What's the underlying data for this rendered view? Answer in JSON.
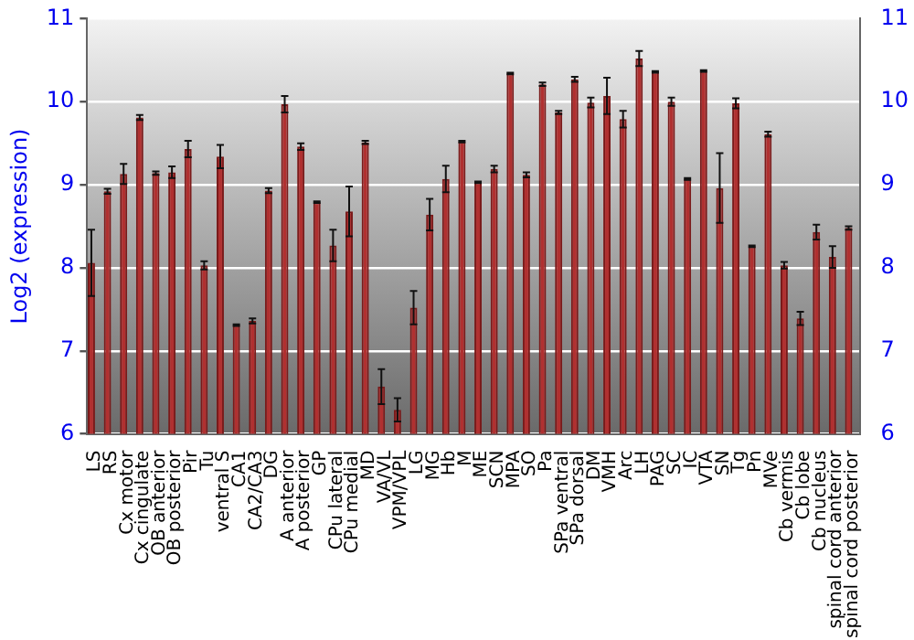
{
  "chart_data": {
    "type": "bar",
    "ylabel": "Log2 (expression)",
    "categories": [
      "LS",
      "RS",
      "Cx motor",
      "Cx cingulate",
      "OB anterior",
      "OB posterior",
      "Pir",
      "Tu",
      "ventral S",
      "CA1",
      "CA2/CA3",
      "DG",
      "A anterior",
      "A posterior",
      "GP",
      "CPu lateral",
      "CPu medial",
      "MD",
      "VA/VL",
      "VPM/VPL",
      "LG",
      "MG",
      "Hb",
      "M",
      "ME",
      "SCN",
      "MPA",
      "SO",
      "Pa",
      "SPa ventral",
      "SPa dorsal",
      "DM",
      "VMH",
      "Arc",
      "LH",
      "PAG",
      "SC",
      "IC",
      "VTA",
      "SN",
      "Tg",
      "Pn",
      "MVe",
      "Cb vermis",
      "Cb lobe",
      "Cb nucleus",
      "spinal cord anterior",
      "spinal cord posterior"
    ],
    "values": [
      8.06,
      8.92,
      9.13,
      9.81,
      9.14,
      9.15,
      9.43,
      8.03,
      9.34,
      7.31,
      7.36,
      8.93,
      9.97,
      9.46,
      8.79,
      8.27,
      8.68,
      9.51,
      6.57,
      6.29,
      7.52,
      8.64,
      9.07,
      9.52,
      9.03,
      9.19,
      10.34,
      9.12,
      10.21,
      9.87,
      10.27,
      9.99,
      10.07,
      9.79,
      10.52,
      10.36,
      10.0,
      9.07,
      10.37,
      8.96,
      9.98,
      8.26,
      9.61,
      8.03,
      7.39,
      8.43,
      8.13,
      8.48
    ],
    "errors": [
      0.4,
      0.03,
      0.12,
      0.03,
      0.02,
      0.07,
      0.1,
      0.05,
      0.14,
      0.01,
      0.03,
      0.03,
      0.1,
      0.04,
      0.01,
      0.19,
      0.3,
      0.02,
      0.21,
      0.14,
      0.2,
      0.19,
      0.16,
      0.01,
      0.01,
      0.04,
      0.01,
      0.03,
      0.02,
      0.02,
      0.03,
      0.06,
      0.22,
      0.1,
      0.09,
      0.01,
      0.05,
      0.01,
      0.01,
      0.42,
      0.06,
      0.01,
      0.03,
      0.04,
      0.08,
      0.09,
      0.13,
      0.02
    ],
    "color": "#b03030",
    "ylim": [
      6,
      11
    ],
    "yticks": [
      6,
      7,
      8,
      9,
      10,
      11
    ],
    "y2lim": [
      6,
      11
    ],
    "y2ticks": [
      6,
      7,
      8,
      9,
      10,
      11
    ],
    "grid": "y",
    "legend": false
  }
}
